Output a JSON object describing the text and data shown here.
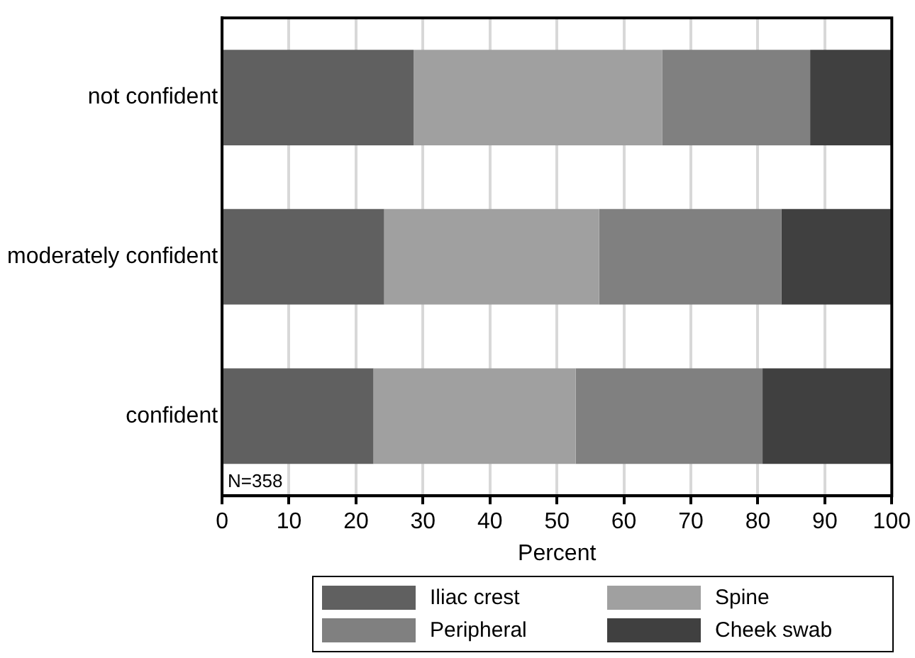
{
  "chart_data": {
    "type": "bar",
    "orientation": "horizontal",
    "stacked": true,
    "categories": [
      "not confident",
      "moderately confident",
      "confident"
    ],
    "series": [
      {
        "name": "Iliac crest",
        "color": "#606060",
        "values": [
          28.6,
          24.2,
          22.6
        ]
      },
      {
        "name": "Spine",
        "color": "#a0a0a0",
        "values": [
          37.1,
          32.1,
          30.2
        ]
      },
      {
        "name": "Peripheral",
        "color": "#808080",
        "values": [
          22.1,
          27.2,
          27.9
        ]
      },
      {
        "name": "Cheek swab",
        "color": "#404040",
        "values": [
          12.2,
          16.5,
          19.3
        ]
      }
    ],
    "xlabel": "Percent",
    "xlim": [
      0,
      100
    ],
    "xticks": [
      0,
      10,
      20,
      30,
      40,
      50,
      60,
      70,
      80,
      90,
      100
    ],
    "grid": "x",
    "legend": "bottom",
    "annotations": [
      "N=358"
    ]
  }
}
